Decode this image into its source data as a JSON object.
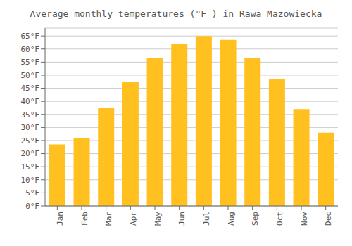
{
  "chart_data": {
    "type": "bar",
    "title": "Average monthly temperatures (°F ) in Rawa Mazowiecka",
    "categories": [
      "Jan",
      "Feb",
      "Mar",
      "Apr",
      "May",
      "Jun",
      "Jul",
      "Aug",
      "Sep",
      "Oct",
      "Nov",
      "Dec"
    ],
    "values": [
      23.5,
      26.0,
      37.5,
      47.5,
      56.5,
      62.0,
      65.0,
      63.5,
      56.5,
      48.5,
      37.0,
      28.0
    ],
    "color": "#FFC020",
    "ylim": [
      0,
      68
    ],
    "yticks": [
      {
        "value": 0,
        "label": "0°F"
      },
      {
        "value": 5,
        "label": "5°F"
      },
      {
        "value": 10,
        "label": "10°F"
      },
      {
        "value": 15,
        "label": "15°F"
      },
      {
        "value": 20,
        "label": "20°F"
      },
      {
        "value": 25,
        "label": "25°F"
      },
      {
        "value": 30,
        "label": "30°F"
      },
      {
        "value": 35,
        "label": "35°F"
      },
      {
        "value": 40,
        "label": "40°F"
      },
      {
        "value": 45,
        "label": "45°F"
      },
      {
        "value": 50,
        "label": "50°F"
      },
      {
        "value": 55,
        "label": "55°F"
      },
      {
        "value": 60,
        "label": "60°F"
      },
      {
        "value": 65,
        "label": "65°F"
      }
    ],
    "grid": true
  }
}
